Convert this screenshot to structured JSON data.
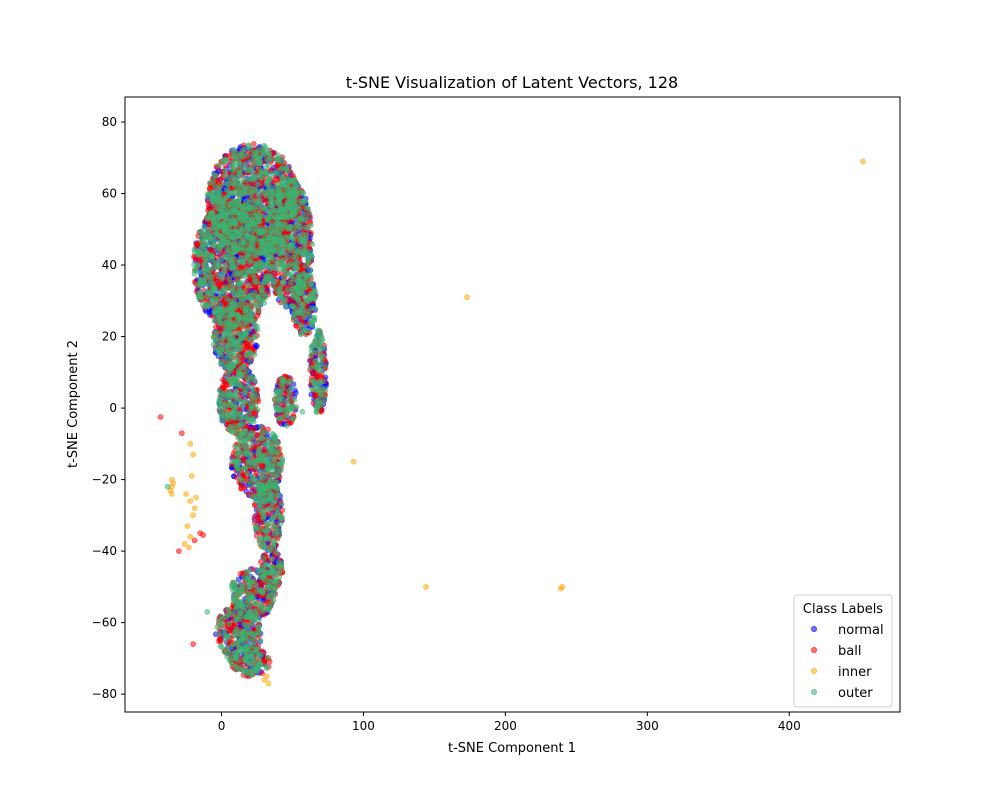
{
  "chart_data": {
    "type": "scatter",
    "title": "t-SNE Visualization of Latent Vectors, 128",
    "xlabel": "t-SNE Component 1",
    "ylabel": "t-SNE Component 2",
    "xlim": [
      -68,
      478
    ],
    "ylim": [
      -85,
      87
    ],
    "xticks": [
      0,
      100,
      200,
      300,
      400
    ],
    "yticks": [
      -80,
      -60,
      -40,
      -20,
      0,
      20,
      40,
      60,
      80
    ],
    "grid": false,
    "legend": {
      "title": "Class Labels",
      "placement": "lower-right"
    },
    "marker_alpha": 0.55,
    "series": [
      {
        "name": "normal",
        "color": "#0000ff",
        "values_note": "points listed in points"
      },
      {
        "name": "ball",
        "color": "#ff0000"
      },
      {
        "name": "inner",
        "color": "#ffa500"
      },
      {
        "name": "outer",
        "color": "#3cb371"
      }
    ],
    "clusters": [
      {
        "cx": 22,
        "cy": 58,
        "rx": 32,
        "ry": 16
      },
      {
        "cx": 8,
        "cy": 40,
        "rx": 28,
        "ry": 18
      },
      {
        "cx": 48,
        "cy": 46,
        "rx": 16,
        "ry": 18
      },
      {
        "cx": 58,
        "cy": 30,
        "rx": 9,
        "ry": 10
      },
      {
        "cx": 68,
        "cy": 10,
        "rx": 6,
        "ry": 12
      },
      {
        "cx": 10,
        "cy": 20,
        "rx": 16,
        "ry": 10
      },
      {
        "cx": 12,
        "cy": 2,
        "rx": 14,
        "ry": 10
      },
      {
        "cx": 45,
        "cy": 2,
        "rx": 8,
        "ry": 7
      },
      {
        "cx": 25,
        "cy": -15,
        "rx": 18,
        "ry": 10
      },
      {
        "cx": 33,
        "cy": -30,
        "rx": 10,
        "ry": 10
      },
      {
        "cx": 35,
        "cy": -45,
        "rx": 8,
        "ry": 6
      },
      {
        "cx": 22,
        "cy": -52,
        "rx": 16,
        "ry": 7
      },
      {
        "cx": 12,
        "cy": -63,
        "rx": 16,
        "ry": 8
      },
      {
        "cx": 20,
        "cy": -71,
        "rx": 14,
        "ry": 4
      }
    ],
    "inner_outliers": [
      [
        452,
        69
      ],
      [
        173,
        31
      ],
      [
        93,
        -15
      ],
      [
        144,
        -50
      ],
      [
        239,
        -50.5
      ],
      [
        240,
        -50
      ],
      [
        32,
        -75
      ],
      [
        33,
        -77
      ],
      [
        30,
        -76
      ],
      [
        -22,
        -10
      ],
      [
        -20,
        -13
      ],
      [
        -21,
        -19
      ],
      [
        -35,
        -20
      ],
      [
        -35,
        -22
      ],
      [
        -35,
        -24
      ],
      [
        -34,
        -21
      ],
      [
        -36,
        -23
      ],
      [
        -25,
        -24
      ],
      [
        -22,
        -26
      ],
      [
        -20,
        -30
      ],
      [
        -24,
        -33
      ],
      [
        -22,
        -36
      ],
      [
        -26,
        -38
      ],
      [
        -23,
        -39
      ],
      [
        -19,
        -28
      ],
      [
        -18,
        -25
      ]
    ],
    "ball_outliers": [
      [
        -43,
        -2.5
      ],
      [
        -28,
        -7
      ],
      [
        -15,
        -35
      ],
      [
        -20,
        -66
      ],
      [
        -30,
        -40
      ],
      [
        -13,
        -35.5
      ],
      [
        -19,
        -37
      ]
    ],
    "outer_outliers": [
      [
        -38,
        -22
      ],
      [
        57,
        -1
      ],
      [
        -10,
        -57
      ]
    ]
  }
}
